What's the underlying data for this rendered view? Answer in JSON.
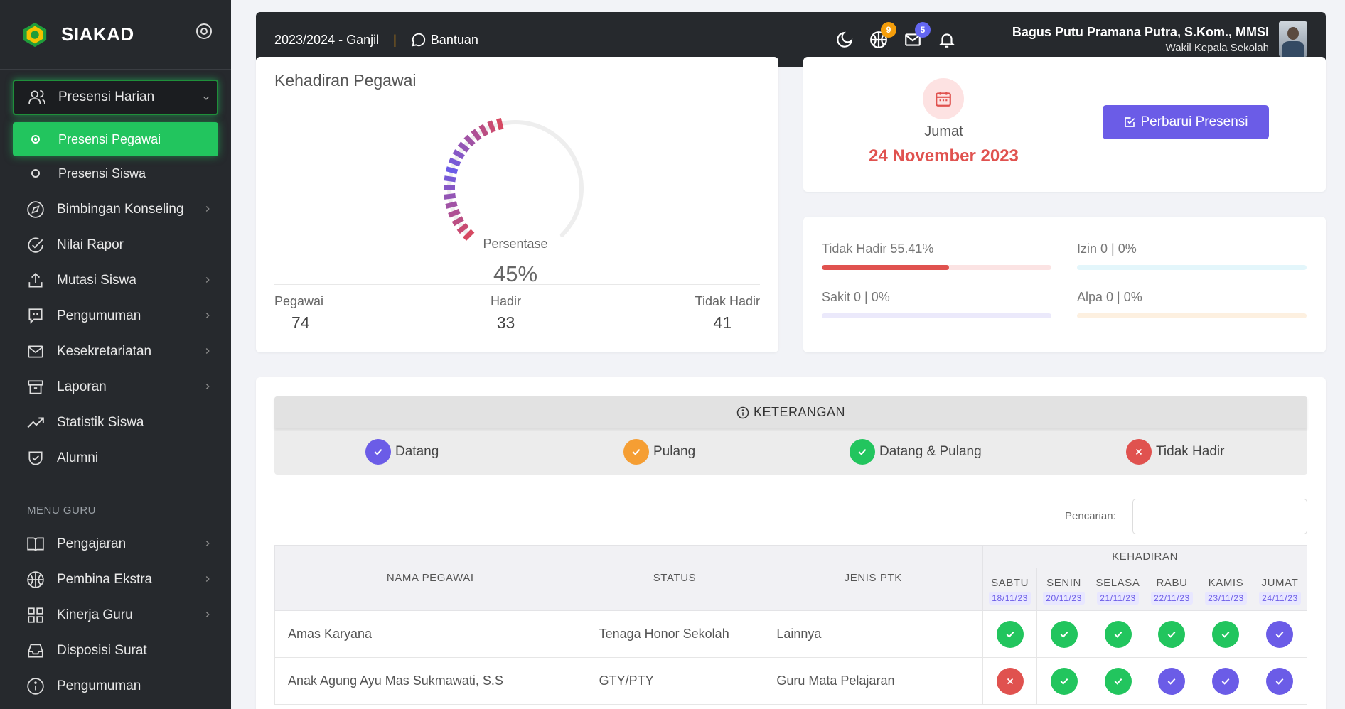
{
  "sidebar": {
    "brand": "SIAKAD",
    "items": [
      {
        "label": "Presensi Harian",
        "icon": "users-icon"
      },
      {
        "label": "Presensi Pegawai"
      },
      {
        "label": "Presensi Siswa"
      },
      {
        "label": "Bimbingan Konseling",
        "icon": "compass-icon"
      },
      {
        "label": "Nilai Rapor",
        "icon": "check-circle-icon"
      },
      {
        "label": "Mutasi Siswa",
        "icon": "upload-icon"
      },
      {
        "label": "Pengumuman",
        "icon": "message-square-icon"
      },
      {
        "label": "Kesekretariatan",
        "icon": "mail-icon"
      },
      {
        "label": "Laporan",
        "icon": "archive-icon"
      },
      {
        "label": "Statistik Siswa",
        "icon": "trending-up-icon"
      },
      {
        "label": "Alumni",
        "icon": "shield-check-icon"
      }
    ],
    "heading": "MENU GURU",
    "guru_items": [
      {
        "label": "Pengajaran",
        "icon": "book-open-icon"
      },
      {
        "label": "Pembina Ekstra",
        "icon": "basketball-icon"
      },
      {
        "label": "Kinerja Guru",
        "icon": "grid-icon"
      },
      {
        "label": "Disposisi Surat",
        "icon": "inbox-icon"
      },
      {
        "label": "Pengumuman",
        "icon": "info-icon"
      }
    ]
  },
  "topbar": {
    "period": "2023/2024 - Ganjil",
    "separator": "|",
    "help": "Bantuan",
    "badge_ekstra": "9",
    "badge_mail": "5",
    "user_name": "Bagus Putu Pramana Putra, S.Kom., MMSI",
    "user_role": "Wakil Kepala Sekolah"
  },
  "attendance": {
    "title": "Kehadiran Pegawai",
    "gauge_label": "Persentase",
    "percent": "45%",
    "percent_value": 45,
    "pegawai_label": "Pegawai",
    "pegawai": "74",
    "hadir_label": "Hadir",
    "hadir": "33",
    "tidak_hadir_label": "Tidak Hadir",
    "tidak_hadir": "41"
  },
  "date_card": {
    "day": "Jumat",
    "date": "24 November 2023",
    "button": "Perbarui Presensi"
  },
  "progress": [
    {
      "label": "Tidak Hadir 55.41%",
      "value": 55.41,
      "color": "#e0524f",
      "track": "#fbe3e3"
    },
    {
      "label": "Izin 0 | 0%",
      "value": 0,
      "color": "#38bdf8",
      "track": "#e3f6fb"
    },
    {
      "label": "Sakit 0 | 0%",
      "value": 0,
      "color": "#6b5ce7",
      "track": "#ebe9fb"
    },
    {
      "label": "Alpa 0 | 0%",
      "value": 0,
      "color": "#f59e0b",
      "track": "#fdf0e0"
    }
  ],
  "keterangan": {
    "title": "KETERANGAN",
    "legend": [
      {
        "label": "Datang",
        "color": "#6b5ce7",
        "icon": "check-icon"
      },
      {
        "label": "Pulang",
        "color": "#f59e33",
        "icon": "check-icon"
      },
      {
        "label": "Datang & Pulang",
        "color": "#22c55e",
        "icon": "check-icon"
      },
      {
        "label": "Tidak Hadir",
        "color": "#e0524f",
        "icon": "x-icon"
      }
    ]
  },
  "search": {
    "label": "Pencarian:",
    "value": ""
  },
  "table": {
    "col_nama": "NAMA PEGAWAI",
    "col_status": "STATUS",
    "col_jenis": "JENIS PTK",
    "col_kehadiran": "KEHADIRAN",
    "days": [
      {
        "name": "SABTU",
        "date": "18/11/23"
      },
      {
        "name": "SENIN",
        "date": "20/11/23"
      },
      {
        "name": "SELASA",
        "date": "21/11/23"
      },
      {
        "name": "RABU",
        "date": "22/11/23"
      },
      {
        "name": "KAMIS",
        "date": "23/11/23"
      },
      {
        "name": "JUMAT",
        "date": "24/11/23"
      }
    ],
    "rows": [
      {
        "nama": "Amas Karyana",
        "status": "Tenaga Honor Sekolah",
        "jenis": "Lainnya",
        "marks": [
          "datang-pulang",
          "datang-pulang",
          "datang-pulang",
          "datang-pulang",
          "datang-pulang",
          "datang"
        ]
      },
      {
        "nama": "Anak Agung Ayu Mas Sukmawati, S.S",
        "status": "GTY/PTY",
        "jenis": "Guru Mata Pelajaran",
        "marks": [
          "tidak-hadir",
          "datang-pulang",
          "datang-pulang",
          "datang",
          "datang",
          "datang"
        ]
      }
    ]
  }
}
